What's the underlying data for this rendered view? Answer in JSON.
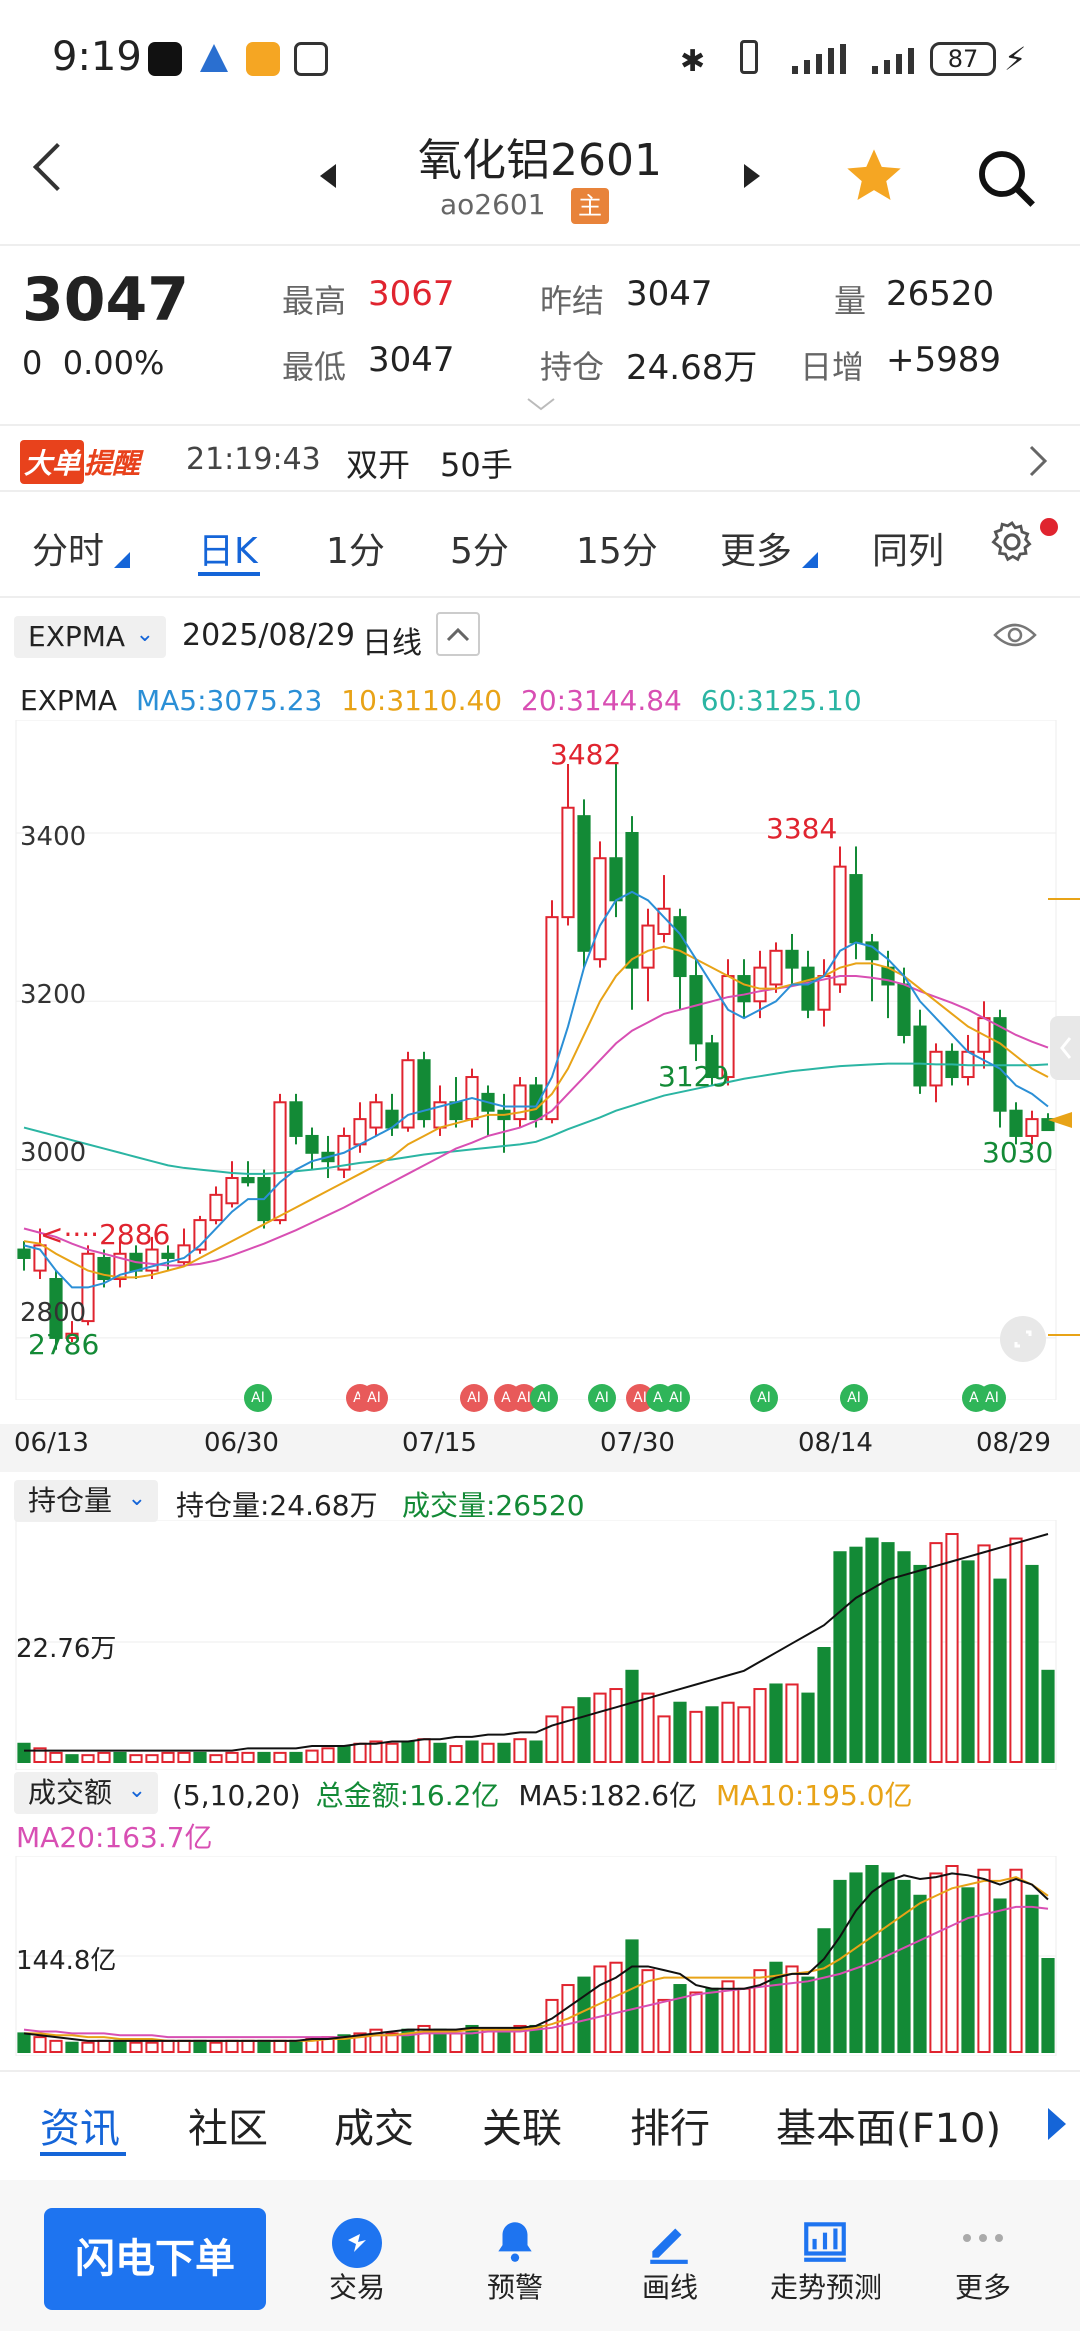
{
  "status_bar": {
    "time": "9:19",
    "battery": "87"
  },
  "header": {
    "title": "氧化铝2601",
    "code": "ao2601",
    "badge": "主"
  },
  "quote": {
    "price": "3047",
    "change": "0",
    "change_pct": "0.00%",
    "high_label": "最高",
    "high": "3067",
    "low_label": "最低",
    "low": "3047",
    "prev_label": "昨结",
    "prev": "3047",
    "oi_label": "持仓",
    "oi": "24.68万",
    "vol_label": "量",
    "vol": "26520",
    "daily_label": "日增",
    "daily": "+5989"
  },
  "alert": {
    "badge_a": "大单",
    "badge_b": "提醒",
    "time": "21:19:43",
    "type": "双开",
    "qty": "50手"
  },
  "tabs": [
    "分时",
    "日K",
    "1分",
    "5分",
    "15分",
    "更多",
    "同列"
  ],
  "chart_header": {
    "indicator": "EXPMA",
    "date": "2025/08/29",
    "period": "日线"
  },
  "ma_legend": {
    "name": "EXPMA",
    "ma5": "MA5:3075.23",
    "ma10": "10:3110.40",
    "ma20": "20:3144.84",
    "ma60": "60:3125.10"
  },
  "colors": {
    "up": "#e0242f",
    "down": "#138a36",
    "ma5": "#2b8fd6",
    "ma10": "#e8a317",
    "ma20": "#d84fb3",
    "ma60": "#2bb5a3",
    "accent": "#1565d8"
  },
  "price_axis": {
    "ticks": [
      "3400",
      "3200",
      "3000",
      "2800"
    ]
  },
  "annotations": {
    "high_main": "3482",
    "high_second": "3384",
    "low_mid": "3129",
    "low_end": "3030",
    "low_start": "2786",
    "ref": "2886"
  },
  "dates": [
    "06/13",
    "06/30",
    "07/15",
    "07/30",
    "08/14",
    "08/29"
  ],
  "ai_badge": "AI",
  "oi_panel": {
    "selector": "持仓量",
    "oi_text": "持仓量:24.68万",
    "vol_text": "成交量:26520",
    "axis_label": "22.76万"
  },
  "amount_panel": {
    "selector": "成交额",
    "params": "(5,10,20)",
    "total": "总金额:16.2亿",
    "ma5": "MA5:182.6亿",
    "ma10": "MA10:195.0亿",
    "ma20": "MA20:163.7亿",
    "axis_label": "144.8亿"
  },
  "bottom_tabs": [
    "资讯",
    "社区",
    "成交",
    "关联",
    "排行",
    "基本面(F10)"
  ],
  "bottom_nav": {
    "primary": "闪电下单",
    "items": [
      "交易",
      "预警",
      "画线",
      "走势预测",
      "更多"
    ]
  },
  "chart_data": {
    "type": "candlestick",
    "x_start": "06/13",
    "x_end": "08/29",
    "y_range": [
      2750,
      3520
    ],
    "candles": [
      {
        "o": 2905,
        "c": 2895,
        "h": 2915,
        "l": 2880
      },
      {
        "o": 2880,
        "c": 2910,
        "h": 2930,
        "l": 2870
      },
      {
        "o": 2870,
        "c": 2800,
        "h": 2880,
        "l": 2786
      },
      {
        "o": 2800,
        "c": 2805,
        "h": 2820,
        "l": 2795
      },
      {
        "o": 2820,
        "c": 2900,
        "h": 2910,
        "l": 2815
      },
      {
        "o": 2895,
        "c": 2870,
        "h": 2905,
        "l": 2860
      },
      {
        "o": 2870,
        "c": 2900,
        "h": 2915,
        "l": 2860
      },
      {
        "o": 2900,
        "c": 2880,
        "h": 2910,
        "l": 2870
      },
      {
        "o": 2880,
        "c": 2905,
        "h": 2920,
        "l": 2870
      },
      {
        "o": 2900,
        "c": 2895,
        "h": 2910,
        "l": 2880
      },
      {
        "o": 2890,
        "c": 2910,
        "h": 2930,
        "l": 2885
      },
      {
        "o": 2905,
        "c": 2940,
        "h": 2945,
        "l": 2900
      },
      {
        "o": 2940,
        "c": 2970,
        "h": 2980,
        "l": 2935
      },
      {
        "o": 2960,
        "c": 2990,
        "h": 3010,
        "l": 2955
      },
      {
        "o": 2990,
        "c": 2985,
        "h": 3010,
        "l": 2980
      },
      {
        "o": 2990,
        "c": 2940,
        "h": 3000,
        "l": 2930
      },
      {
        "o": 2940,
        "c": 3080,
        "h": 3090,
        "l": 2935
      },
      {
        "o": 3080,
        "c": 3040,
        "h": 3090,
        "l": 3030
      },
      {
        "o": 3040,
        "c": 3020,
        "h": 3050,
        "l": 3000
      },
      {
        "o": 3020,
        "c": 3010,
        "h": 3040,
        "l": 2990
      },
      {
        "o": 3000,
        "c": 3040,
        "h": 3050,
        "l": 2990
      },
      {
        "o": 3030,
        "c": 3060,
        "h": 3080,
        "l": 3020
      },
      {
        "o": 3050,
        "c": 3080,
        "h": 3090,
        "l": 3040
      },
      {
        "o": 3070,
        "c": 3050,
        "h": 3090,
        "l": 3040
      },
      {
        "o": 3050,
        "c": 3130,
        "h": 3140,
        "l": 3045
      },
      {
        "o": 3130,
        "c": 3060,
        "h": 3140,
        "l": 3050
      },
      {
        "o": 3050,
        "c": 3080,
        "h": 3100,
        "l": 3040
      },
      {
        "o": 3080,
        "c": 3060,
        "h": 3110,
        "l": 3050
      },
      {
        "o": 3060,
        "c": 3110,
        "h": 3120,
        "l": 3050
      },
      {
        "o": 3090,
        "c": 3070,
        "h": 3100,
        "l": 3040
      },
      {
        "o": 3070,
        "c": 3060,
        "h": 3090,
        "l": 3020
      },
      {
        "o": 3060,
        "c": 3100,
        "h": 3110,
        "l": 3050
      },
      {
        "o": 3100,
        "c": 3060,
        "h": 3110,
        "l": 3050
      },
      {
        "o": 3060,
        "c": 3300,
        "h": 3320,
        "l": 3055
      },
      {
        "o": 3300,
        "c": 3430,
        "h": 3482,
        "l": 3290
      },
      {
        "o": 3420,
        "c": 3260,
        "h": 3440,
        "l": 3240
      },
      {
        "o": 3250,
        "c": 3370,
        "h": 3390,
        "l": 3240
      },
      {
        "o": 3370,
        "c": 3320,
        "h": 3482,
        "l": 3300
      },
      {
        "o": 3400,
        "c": 3240,
        "h": 3420,
        "l": 3190
      },
      {
        "o": 3240,
        "c": 3290,
        "h": 3310,
        "l": 3200
      },
      {
        "o": 3280,
        "c": 3310,
        "h": 3350,
        "l": 3270
      },
      {
        "o": 3300,
        "c": 3230,
        "h": 3310,
        "l": 3190
      },
      {
        "o": 3230,
        "c": 3150,
        "h": 3250,
        "l": 3129
      },
      {
        "o": 3150,
        "c": 3110,
        "h": 3160,
        "l": 3100
      },
      {
        "o": 3110,
        "c": 3230,
        "h": 3250,
        "l": 3100
      },
      {
        "o": 3230,
        "c": 3200,
        "h": 3250,
        "l": 3180
      },
      {
        "o": 3200,
        "c": 3240,
        "h": 3260,
        "l": 3180
      },
      {
        "o": 3220,
        "c": 3260,
        "h": 3270,
        "l": 3210
      },
      {
        "o": 3260,
        "c": 3240,
        "h": 3280,
        "l": 3220
      },
      {
        "o": 3240,
        "c": 3190,
        "h": 3260,
        "l": 3180
      },
      {
        "o": 3190,
        "c": 3230,
        "h": 3250,
        "l": 3170
      },
      {
        "o": 3220,
        "c": 3360,
        "h": 3384,
        "l": 3210
      },
      {
        "o": 3350,
        "c": 3270,
        "h": 3384,
        "l": 3250
      },
      {
        "o": 3270,
        "c": 3250,
        "h": 3280,
        "l": 3200
      },
      {
        "o": 3240,
        "c": 3220,
        "h": 3260,
        "l": 3180
      },
      {
        "o": 3220,
        "c": 3160,
        "h": 3240,
        "l": 3150
      },
      {
        "o": 3170,
        "c": 3100,
        "h": 3190,
        "l": 3090
      },
      {
        "o": 3100,
        "c": 3140,
        "h": 3150,
        "l": 3080
      },
      {
        "o": 3140,
        "c": 3110,
        "h": 3150,
        "l": 3100
      },
      {
        "o": 3110,
        "c": 3140,
        "h": 3160,
        "l": 3100
      },
      {
        "o": 3140,
        "c": 3180,
        "h": 3200,
        "l": 3120
      },
      {
        "o": 3180,
        "c": 3070,
        "h": 3190,
        "l": 3050
      },
      {
        "o": 3070,
        "c": 3040,
        "h": 3080,
        "l": 3030
      },
      {
        "o": 3040,
        "c": 3060,
        "h": 3070,
        "l": 3030
      },
      {
        "o": 3060,
        "c": 3047,
        "h": 3067,
        "l": 3047
      }
    ],
    "ma5": [
      2910,
      2905,
      2880,
      2860,
      2860,
      2865,
      2875,
      2880,
      2885,
      2890,
      2895,
      2910,
      2930,
      2950,
      2965,
      2965,
      2985,
      3000,
      3010,
      3015,
      3020,
      3030,
      3040,
      3050,
      3065,
      3070,
      3075,
      3080,
      3085,
      3080,
      3075,
      3075,
      3075,
      3110,
      3170,
      3240,
      3290,
      3320,
      3330,
      3320,
      3300,
      3280,
      3250,
      3220,
      3190,
      3180,
      3190,
      3200,
      3220,
      3220,
      3230,
      3260,
      3270,
      3265,
      3250,
      3230,
      3200,
      3180,
      3160,
      3140,
      3130,
      3120,
      3100,
      3090,
      3075
    ],
    "ma10": [
      2915,
      2912,
      2900,
      2890,
      2880,
      2875,
      2872,
      2872,
      2875,
      2880,
      2885,
      2895,
      2905,
      2915,
      2925,
      2935,
      2945,
      2955,
      2965,
      2975,
      2985,
      2995,
      3005,
      3015,
      3030,
      3040,
      3050,
      3055,
      3060,
      3065,
      3065,
      3068,
      3072,
      3090,
      3120,
      3160,
      3200,
      3230,
      3250,
      3260,
      3265,
      3260,
      3250,
      3240,
      3230,
      3220,
      3215,
      3215,
      3220,
      3225,
      3230,
      3240,
      3245,
      3245,
      3240,
      3230,
      3215,
      3200,
      3185,
      3170,
      3160,
      3150,
      3135,
      3120,
      3110
    ],
    "ma20": [
      2930,
      2925,
      2920,
      2912,
      2905,
      2900,
      2895,
      2890,
      2888,
      2886,
      2886,
      2888,
      2892,
      2898,
      2905,
      2912,
      2920,
      2928,
      2937,
      2946,
      2955,
      2965,
      2975,
      2985,
      2995,
      3005,
      3015,
      3025,
      3032,
      3040,
      3045,
      3050,
      3058,
      3070,
      3090,
      3110,
      3130,
      3150,
      3165,
      3175,
      3185,
      3190,
      3195,
      3200,
      3205,
      3208,
      3212,
      3215,
      3218,
      3222,
      3226,
      3230,
      3230,
      3228,
      3225,
      3220,
      3212,
      3205,
      3198,
      3190,
      3180,
      3170,
      3160,
      3152,
      3145
    ],
    "ma60": [
      3050,
      3045,
      3040,
      3035,
      3030,
      3025,
      3020,
      3015,
      3010,
      3005,
      3002,
      3000,
      2998,
      2996,
      2995,
      2995,
      2996,
      2998,
      3000,
      3002,
      3005,
      3008,
      3010,
      3012,
      3015,
      3018,
      3020,
      3022,
      3024,
      3026,
      3028,
      3030,
      3033,
      3040,
      3048,
      3055,
      3062,
      3070,
      3076,
      3082,
      3088,
      3092,
      3096,
      3100,
      3104,
      3108,
      3111,
      3114,
      3117,
      3119,
      3121,
      3123,
      3124,
      3125,
      3126,
      3126,
      3126,
      3125,
      3125,
      3124,
      3124,
      3124,
      3124,
      3124,
      3125
    ],
    "oi_bars": [
      8,
      6,
      4,
      3,
      3,
      4,
      4,
      3,
      3,
      4,
      4,
      4,
      3,
      4,
      4,
      4,
      4,
      4,
      5,
      6,
      7,
      8,
      9,
      8,
      9,
      10,
      8,
      7,
      9,
      8,
      8,
      10,
      9,
      20,
      24,
      28,
      30,
      32,
      40,
      30,
      20,
      26,
      22,
      24,
      26,
      24,
      32,
      34,
      34,
      30,
      50,
      92,
      94,
      98,
      96,
      92,
      86,
      96,
      100,
      88,
      95,
      80,
      98,
      86,
      40
    ],
    "oi_up": [
      0,
      1,
      1,
      0,
      1,
      1,
      0,
      1,
      1,
      1,
      1,
      0,
      1,
      1,
      1,
      0,
      1,
      0,
      1,
      1,
      0,
      1,
      1,
      1,
      0,
      1,
      0,
      1,
      0,
      1,
      0,
      1,
      0,
      1,
      1,
      0,
      1,
      1,
      0,
      1,
      1,
      0,
      1,
      0,
      1,
      1,
      1,
      0,
      1,
      0,
      0,
      0,
      0,
      0,
      0,
      0,
      0,
      1,
      1,
      0,
      1,
      0,
      1,
      0,
      0
    ],
    "oi_line": [
      5,
      5,
      5,
      5,
      5,
      5,
      5,
      5,
      5,
      5,
      5,
      5,
      5,
      5,
      6,
      6,
      6,
      6,
      7,
      7,
      7,
      8,
      8,
      9,
      9,
      10,
      10,
      11,
      11,
      12,
      12,
      13,
      13,
      16,
      18,
      20,
      22,
      24,
      26,
      28,
      30,
      32,
      34,
      36,
      38,
      40,
      44,
      48,
      52,
      56,
      60,
      66,
      72,
      76,
      80,
      82,
      84,
      86,
      88,
      90,
      92,
      94,
      96,
      98,
      100
    ],
    "amt_bars": [
      10,
      8,
      6,
      5,
      5,
      6,
      6,
      5,
      5,
      6,
      6,
      6,
      5,
      6,
      6,
      6,
      6,
      6,
      7,
      8,
      9,
      10,
      12,
      10,
      12,
      14,
      12,
      10,
      14,
      12,
      12,
      14,
      14,
      28,
      36,
      40,
      46,
      48,
      60,
      44,
      28,
      36,
      32,
      34,
      38,
      34,
      44,
      48,
      46,
      40,
      66,
      92,
      96,
      100,
      96,
      92,
      84,
      96,
      100,
      88,
      98,
      82,
      98,
      84,
      50
    ],
    "amt_ma5": [
      10,
      9,
      8,
      7,
      6,
      6,
      6,
      6,
      6,
      6,
      6,
      6,
      6,
      6,
      6,
      6,
      6,
      6,
      7,
      7,
      8,
      9,
      10,
      11,
      12,
      12,
      12,
      12,
      13,
      13,
      13,
      13,
      14,
      18,
      24,
      30,
      36,
      40,
      46,
      46,
      44,
      42,
      36,
      34,
      34,
      34,
      36,
      40,
      42,
      42,
      50,
      62,
      76,
      86,
      92,
      95,
      93,
      94,
      96,
      95,
      93,
      90,
      93,
      90,
      82
    ],
    "amt_ma10": [
      10,
      10,
      9,
      9,
      8,
      8,
      7,
      7,
      7,
      6,
      6,
      6,
      6,
      6,
      6,
      6,
      6,
      6,
      6,
      7,
      7,
      8,
      9,
      9,
      10,
      11,
      11,
      11,
      12,
      12,
      12,
      12,
      13,
      15,
      18,
      22,
      26,
      30,
      34,
      38,
      40,
      40,
      40,
      40,
      40,
      40,
      40,
      41,
      42,
      43,
      45,
      50,
      56,
      62,
      68,
      74,
      80,
      84,
      88,
      90,
      92,
      92,
      94,
      90,
      84
    ],
    "amt_ma20": [
      12,
      11,
      11,
      10,
      10,
      10,
      9,
      9,
      9,
      8,
      8,
      8,
      8,
      8,
      8,
      8,
      8,
      8,
      8,
      8,
      8,
      8,
      9,
      9,
      9,
      10,
      10,
      10,
      10,
      11,
      11,
      11,
      12,
      13,
      15,
      17,
      19,
      21,
      23,
      25,
      27,
      29,
      31,
      32,
      33,
      34,
      35,
      36,
      37,
      38,
      40,
      42,
      45,
      48,
      52,
      56,
      60,
      64,
      68,
      72,
      74,
      76,
      78,
      78,
      77
    ]
  }
}
